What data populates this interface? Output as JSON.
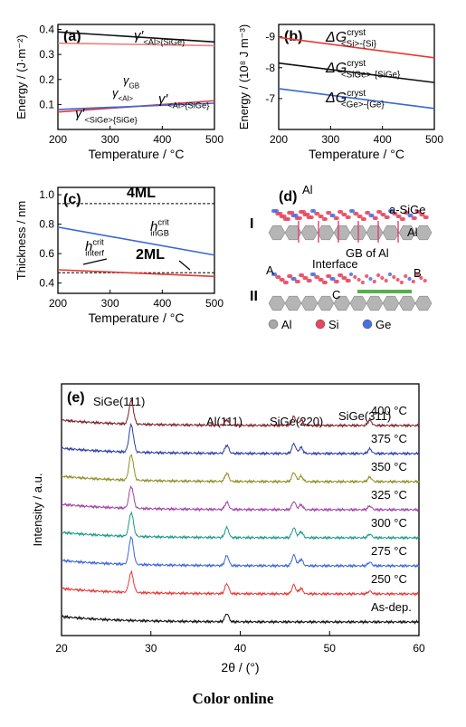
{
  "caption": "Color online",
  "chart_data": [
    {
      "type": "line",
      "panel_label": "(a)",
      "xlabel": "Temperature / °C",
      "ylabel": "Energy / (J·m⁻²)",
      "xlim": [
        200,
        500
      ],
      "ylim": [
        0.0,
        0.42
      ],
      "xticks": [
        200,
        300,
        400,
        500
      ],
      "yticks": [
        0.1,
        0.2,
        0.3,
        0.4
      ],
      "series": [
        {
          "label_main": "γ′",
          "label_sub": "<Al>{SiGe}",
          "color": "#111111",
          "x": [
            200,
            500
          ],
          "y": [
            0.39,
            0.35
          ]
        },
        {
          "label_main": "γ",
          "label_sub": "GB",
          "color": "#f08080",
          "x": [
            200,
            500
          ],
          "y": [
            0.345,
            0.335
          ]
        },
        {
          "label_main": "γ",
          "label_sub": "<Al>",
          "color": "#e53935",
          "x": [
            200,
            500
          ],
          "y": [
            0.07,
            0.115
          ]
        },
        {
          "label_main": "γ′",
          "label_sub": "<SiGe>{SiGe}",
          "color": "#3a66d6",
          "x": [
            200,
            500
          ],
          "y": [
            0.08,
            0.105
          ]
        }
      ],
      "extra_label": {
        "main": "γ′",
        "sub": "<Al>{SiGe}"
      }
    },
    {
      "type": "line",
      "panel_label": "(b)",
      "xlabel": "Temperature / °C",
      "ylabel": "Energy / (10⁸ J m⁻³)",
      "xlim": [
        200,
        500
      ],
      "ylim": [
        -9.4,
        -6.0
      ],
      "xticks": [
        200,
        300,
        400,
        500
      ],
      "yticks": [
        -9,
        -8,
        -7
      ],
      "series": [
        {
          "label_main": "ΔG",
          "label_sup": "cryst",
          "label_sub": "<Si>-{Si}",
          "color": "#e53935",
          "x": [
            200,
            500
          ],
          "y": [
            -8.98,
            -8.32
          ]
        },
        {
          "label_main": "ΔG",
          "label_sup": "cryst",
          "label_sub": "<SiGe>-{SiGe}",
          "color": "#111111",
          "x": [
            200,
            500
          ],
          "y": [
            -8.15,
            -7.52
          ]
        },
        {
          "label_main": "ΔG",
          "label_sup": "cryst",
          "label_sub": "<Ge>-{Ge}",
          "color": "#3a66d6",
          "x": [
            200,
            500
          ],
          "y": [
            -7.32,
            -6.68
          ]
        }
      ]
    },
    {
      "type": "line",
      "panel_label": "(c)",
      "xlabel": "Temperature / °C",
      "ylabel": "Thickness / nm",
      "xlim": [
        200,
        500
      ],
      "ylim": [
        0.33,
        1.05
      ],
      "xticks": [
        200,
        300,
        400,
        500
      ],
      "yticks": [
        0.4,
        0.6,
        0.8,
        1.0
      ],
      "series": [
        {
          "label_main": "h",
          "label_sup": "crit",
          "label_sub": "inGB",
          "color": "#3a66d6",
          "x": [
            200,
            500
          ],
          "y": [
            0.78,
            0.59
          ]
        },
        {
          "label_main": "h",
          "label_sup": "crit",
          "label_sub": "interf",
          "color": "#e53935",
          "x": [
            200,
            500
          ],
          "y": [
            0.49,
            0.445
          ]
        }
      ],
      "reference_lines": [
        {
          "label": "4ML",
          "y": 0.94
        },
        {
          "label": "2ML",
          "y": 0.47
        }
      ]
    },
    {
      "type": "diagram",
      "panel_label": "(d)",
      "row_labels": [
        "I",
        "II"
      ],
      "labels": [
        "Al",
        "a-SiGe",
        "Al",
        "A",
        "GB of Al",
        "Interface",
        "B",
        "C"
      ],
      "legend": [
        {
          "label": "Al",
          "color": "#a8a8a8"
        },
        {
          "label": "Si",
          "color": "#e8465e"
        },
        {
          "label": "Ge",
          "color": "#4a6fe0"
        }
      ]
    },
    {
      "type": "line",
      "panel_label": "(e)",
      "xlabel": "2θ / (°)",
      "ylabel": "Intensity / a.u.",
      "xlim": [
        20,
        60
      ],
      "xticks": [
        20,
        30,
        40,
        50,
        60
      ],
      "peaks": [
        {
          "label": "SiGe(111)",
          "x": 27.8
        },
        {
          "label": "Al(111)",
          "x": 38.5
        },
        {
          "label": "SiGe(220)",
          "x": 46.0
        },
        {
          "label": "SiGe(311)",
          "x": 54.5
        }
      ],
      "series": [
        {
          "name": "400 °C",
          "color": "#7a1f2b",
          "peak_heights": [
            26,
            6,
            10,
            6
          ]
        },
        {
          "name": "375 °C",
          "color": "#2a3da8",
          "peak_heights": [
            30,
            9,
            11,
            5
          ]
        },
        {
          "name": "350 °C",
          "color": "#8f8f24",
          "peak_heights": [
            28,
            9,
            10,
            5
          ]
        },
        {
          "name": "325 °C",
          "color": "#a042a6",
          "peak_heights": [
            24,
            8,
            9,
            4
          ]
        },
        {
          "name": "300 °C",
          "color": "#1d9a8c",
          "peak_heights": [
            26,
            11,
            11,
            4
          ]
        },
        {
          "name": "275 °C",
          "color": "#3a66d6",
          "peak_heights": [
            30,
            11,
            12,
            4
          ]
        },
        {
          "name": "250 °C",
          "color": "#e53935",
          "peak_heights": [
            22,
            11,
            10,
            3
          ]
        },
        {
          "name": "As-dep.",
          "color": "#111111",
          "peak_heights": [
            0,
            9,
            0,
            0
          ]
        }
      ]
    }
  ]
}
